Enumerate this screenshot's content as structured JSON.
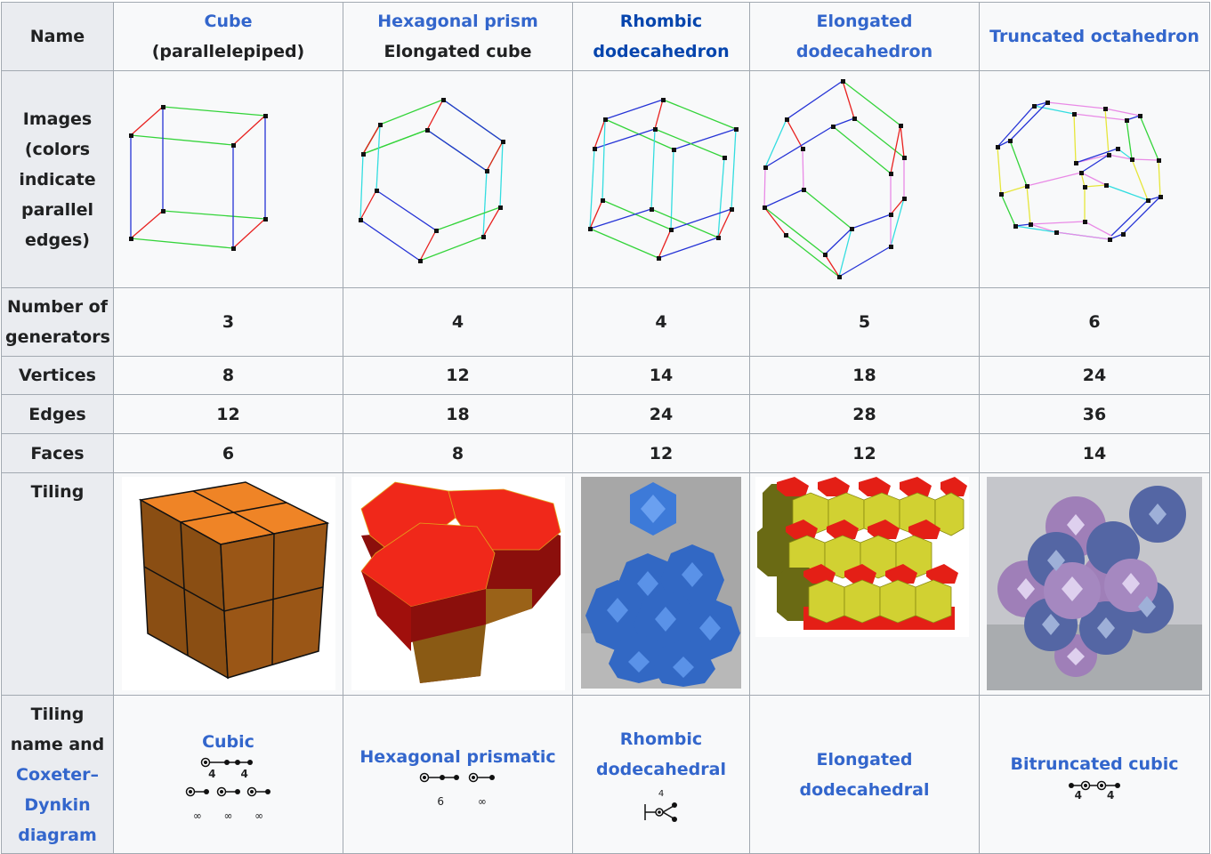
{
  "row_headers": {
    "name": "Name",
    "images": [
      "Images",
      "(colors",
      "indicate",
      "parallel",
      "edges)"
    ],
    "generators": [
      "Number of",
      "generators"
    ],
    "vertices": "Vertices",
    "edges": "Edges",
    "faces": "Faces",
    "tiling": "Tiling",
    "tiling_name": [
      "Tiling",
      "name and",
      "Coxeter–",
      "Dynkin",
      "diagram"
    ]
  },
  "columns": [
    {
      "name_link": "Cube",
      "name_extra": "(parallelepiped)",
      "generators": "3",
      "vertices": "8",
      "edges": "12",
      "faces": "6",
      "tiling_name": "Cubic"
    },
    {
      "name_link": "Hexagonal prism",
      "name_extra": "Elongated cube",
      "generators": "4",
      "vertices": "12",
      "edges": "18",
      "faces": "8",
      "tiling_name": "Hexagonal prismatic"
    },
    {
      "name_link_1": "Rhombic",
      "name_link_2": "dodecahedron",
      "generators": "4",
      "vertices": "14",
      "edges": "24",
      "faces": "12",
      "tiling_name_1": "Rhombic",
      "tiling_name_2": "dodecahedral"
    },
    {
      "name_link_1": "Elongated",
      "name_link_2": "dodecahedron",
      "generators": "5",
      "vertices": "18",
      "edges": "28",
      "faces": "12",
      "tiling_name_1": "Elongated",
      "tiling_name_2": "dodecahedral"
    },
    {
      "name_link": "Truncated octahedron",
      "generators": "6",
      "vertices": "24",
      "edges": "36",
      "faces": "14",
      "tiling_name": "Bitruncated cubic"
    }
  ],
  "dynkin": {
    "c1_top": [
      "4",
      "4"
    ],
    "c1_bottom": [
      "∞",
      "∞",
      "∞"
    ],
    "c2": [
      "6",
      "∞"
    ],
    "c3": [
      "4"
    ],
    "c5": [
      "4",
      "4"
    ]
  },
  "edge_colors": {
    "red": "#e8211f",
    "green": "#34d43a",
    "blue": "#2533d6",
    "cyan": "#33dde0",
    "yellow": "#e6e63a",
    "pink": "#e98ae6"
  },
  "tiling_images": [
    "cubic-honeycomb-image",
    "hexagonal-prismatic-honeycomb-image",
    "rhombic-dodecahedral-honeycomb-image",
    "elongated-dodecahedral-honeycomb-image",
    "bitruncated-cubic-honeycomb-image"
  ]
}
